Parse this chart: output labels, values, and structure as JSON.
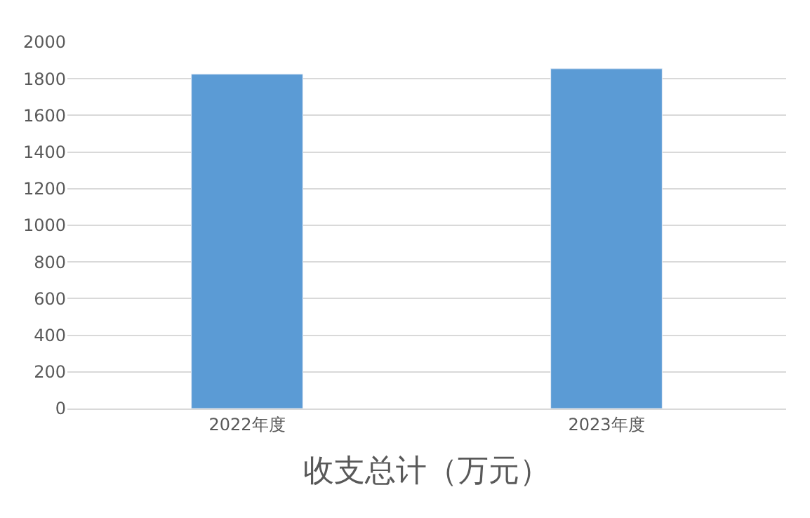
{
  "chart_data": {
    "type": "bar",
    "xlabel": "收支总计（万元）",
    "categories": [
      "2022年度",
      "2023年度"
    ],
    "series": [
      {
        "color": "#5b9bd5",
        "values": [
          1825,
          1855
        ]
      }
    ],
    "ylim": [
      0,
      2000
    ],
    "yticks": [
      0,
      200,
      400,
      600,
      800,
      1000,
      1200,
      1400,
      1600,
      1800,
      2000
    ],
    "grid": "y",
    "legend": false
  }
}
